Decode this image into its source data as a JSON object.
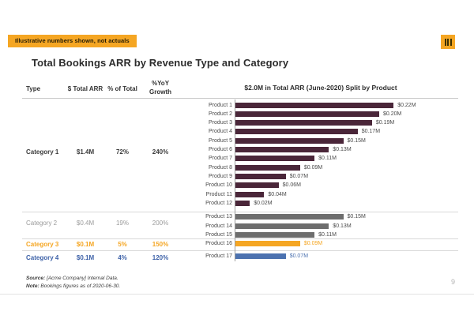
{
  "banner": {
    "text": "Illustrative numbers shown, not actuals"
  },
  "logo": {
    "icon": "three-bars-logo"
  },
  "slide": {
    "title": "Total Bookings ARR by Revenue Type and Category",
    "page_number": "9"
  },
  "table": {
    "headers": [
      "Type",
      "$ Total ARR",
      "% of Total",
      "%YoY Growth"
    ],
    "rows": [
      {
        "type": "Category 1",
        "total_arr": "$1.4M",
        "pct_of_total": "72%",
        "yoy_growth": "240%",
        "color": "#3d3d3d",
        "bold": true
      },
      {
        "type": "Category 2",
        "total_arr": "$0.4M",
        "pct_of_total": "19%",
        "yoy_growth": "200%",
        "color": "#9b9b9b",
        "bold": false
      },
      {
        "type": "Category 3",
        "total_arr": "$0.1M",
        "pct_of_total": "5%",
        "yoy_growth": "150%",
        "color": "#F5A623",
        "bold": true
      },
      {
        "type": "Category 4",
        "total_arr": "$0.1M",
        "pct_of_total": "4%",
        "yoy_growth": "120%",
        "color": "#3E62A8",
        "bold": true
      }
    ]
  },
  "chart_data": {
    "type": "bar",
    "orientation": "horizontal",
    "title": "$2.0M in Total ARR (June-2020) Split by Product",
    "value_unit": "USD millions",
    "axis_tick_labels_shown": false,
    "xlim": [
      0,
      0.24
    ],
    "categories": [
      "Product 1",
      "Product 2",
      "Product 3",
      "Product 4",
      "Product 5",
      "Product 6",
      "Product 7",
      "Product 8",
      "Product 9",
      "Product 10",
      "Product 11",
      "Product 12",
      "Product 13",
      "Product 14",
      "Product 15",
      "Product 16",
      "Product 17"
    ],
    "values": [
      0.22,
      0.2,
      0.19,
      0.17,
      0.15,
      0.13,
      0.11,
      0.09,
      0.07,
      0.06,
      0.04,
      0.02,
      0.15,
      0.13,
      0.11,
      0.09,
      0.07
    ],
    "value_labels": [
      "$0.22M",
      "$0.20M",
      "$0.19M",
      "$0.17M",
      "$0.15M",
      "$0.13M",
      "$0.11M",
      "$0.09M",
      "$0.07M",
      "$0.06M",
      "$0.04M",
      "$0.02M",
      "$0.15M",
      "$0.13M",
      "$0.11M",
      "$0.09M",
      "$0.07M"
    ],
    "bar_colors": [
      "#4A2639",
      "#4A2639",
      "#4A2639",
      "#4A2639",
      "#4A2639",
      "#4A2639",
      "#4A2639",
      "#4A2639",
      "#4A2639",
      "#4A2639",
      "#4A2639",
      "#4A2639",
      "#6D6D6D",
      "#6D6D6D",
      "#6D6D6D",
      "#F5A623",
      "#4C72B0"
    ],
    "value_label_colors": [
      "#4a4a4a",
      "#4a4a4a",
      "#4a4a4a",
      "#4a4a4a",
      "#4a4a4a",
      "#4a4a4a",
      "#4a4a4a",
      "#4a4a4a",
      "#4a4a4a",
      "#4a4a4a",
      "#4a4a4a",
      "#4a4a4a",
      "#4a4a4a",
      "#4a4a4a",
      "#4a4a4a",
      "#F5A623",
      "#4C72B0"
    ],
    "groups": [
      {
        "label": "Category 1",
        "products": "Product 1 - Product 12",
        "color": "#4A2639"
      },
      {
        "label": "Category 2",
        "products": "Product 13 - Product 15",
        "color": "#6D6D6D"
      },
      {
        "label": "Category 3",
        "products": "Product 16",
        "color": "#F5A623"
      },
      {
        "label": "Category 4",
        "products": "Product 17",
        "color": "#4C72B0"
      }
    ]
  },
  "footer": {
    "source_label": "Source:",
    "source_text": " [Acme Company] Internal Data.",
    "note_label": "Note:",
    "note_text": " Bookings figures as of 2020-06-30."
  }
}
